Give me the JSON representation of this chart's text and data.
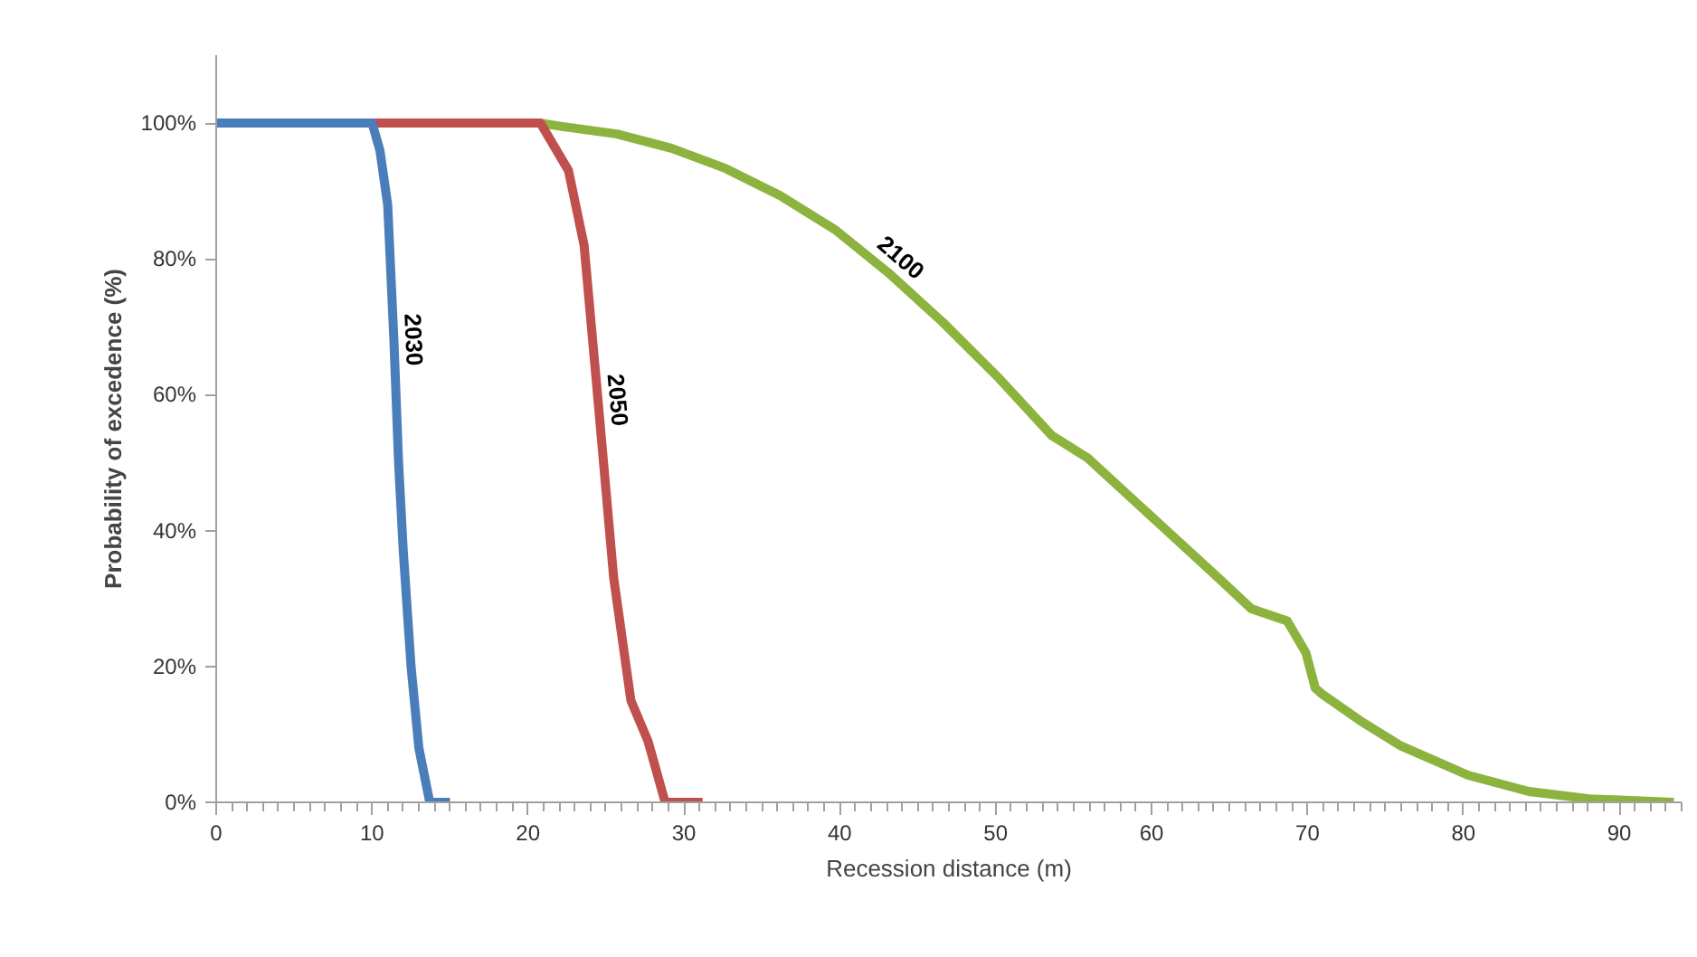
{
  "chart_data": {
    "type": "line",
    "xlabel": "Recession distance (m)",
    "ylabel": "Probability of excedence (%)",
    "xlim": [
      0,
      94
    ],
    "xticks": [
      0,
      10,
      20,
      30,
      40,
      50,
      60,
      70,
      80,
      90
    ],
    "ylim": [
      0,
      110
    ],
    "yticks": [
      {
        "value": 0,
        "label": "0%"
      },
      {
        "value": 20,
        "label": "20%"
      },
      {
        "value": 40,
        "label": "40%"
      },
      {
        "value": 60,
        "label": "60%"
      },
      {
        "value": 80,
        "label": "80%"
      },
      {
        "value": 100,
        "label": "100%"
      }
    ],
    "series": [
      {
        "name": "2100",
        "color": "#8db33f",
        "x": [
          0,
          20.8,
          22.2,
          25.7,
          29.2,
          32.7,
          36.2,
          39.7,
          43.1,
          46.6,
          50.1,
          53.6,
          55.9,
          60.6,
          64.4,
          66.4,
          68.7,
          69.9,
          70.5,
          70.9,
          73.4,
          76,
          80.3,
          84.2,
          88.1,
          93.5
        ],
        "values": [
          100,
          100,
          99.5,
          98.4,
          96.3,
          93.3,
          89.3,
          84.3,
          78,
          70.7,
          62.7,
          54,
          50.7,
          40.8,
          32.8,
          28.5,
          26.7,
          22,
          16.8,
          16,
          12,
          8.3,
          4,
          1.6,
          0.5,
          0
        ]
      },
      {
        "name": "2050",
        "color": "#c0504d",
        "x": [
          0,
          20.8,
          22.6,
          23.6,
          24.5,
          25.5,
          26.6,
          27.7,
          28.8,
          31.2
        ],
        "values": [
          100,
          100,
          93,
          82,
          59,
          33,
          15,
          9,
          0,
          0
        ]
      },
      {
        "name": "2030",
        "color": "#4a7ebb",
        "x": [
          0,
          10,
          10.5,
          11,
          11.4,
          11.7,
          12,
          12.5,
          13,
          13.7,
          15
        ],
        "values": [
          100,
          100,
          96,
          88,
          68,
          50,
          37,
          20,
          8,
          0,
          0
        ]
      }
    ]
  }
}
